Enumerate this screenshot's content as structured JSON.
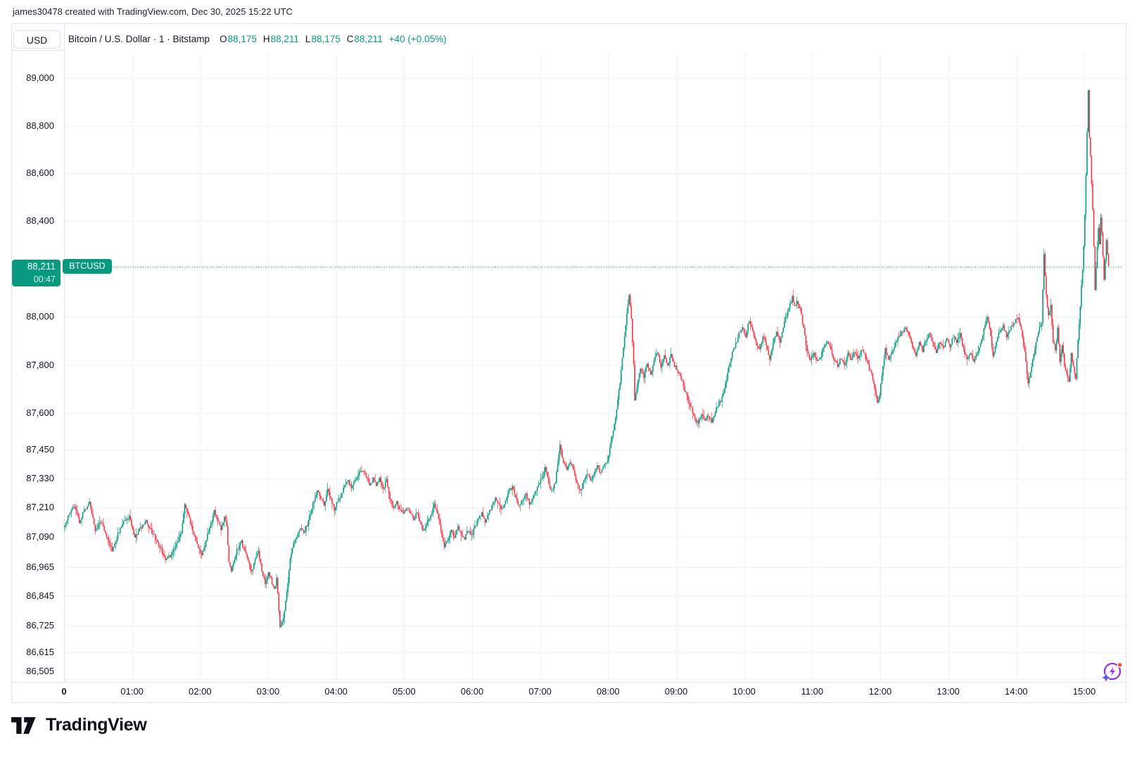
{
  "attribution": "james30478 created with TradingView.com, Dec 30, 2025 15:22 UTC",
  "header": {
    "symbol_button": "USD",
    "title": "Bitcoin / U.S. Dollar · 1 · Bitstamp",
    "o_label": "O",
    "o_value": "88,175",
    "h_label": "H",
    "h_value": "88,211",
    "l_label": "L",
    "l_value": "88,175",
    "c_label": "C",
    "c_value": "88,211",
    "change": "+40 (+0.05%)"
  },
  "price_tag": {
    "price": "88,211",
    "countdown": "00:47",
    "symbol": "BTCUSD"
  },
  "footer": {
    "logo_text": "TradingView"
  },
  "colors": {
    "up": "#089981",
    "down": "#f23645",
    "grid": "#f0f3fa",
    "frame": "#e0e3eb",
    "text": "#131722",
    "last_price_line": "#089981",
    "boost_purple": "#9333ea",
    "boost_star": "#6056f0",
    "boost_dot": "#f64e3c"
  },
  "chart_data": {
    "type": "candlestick",
    "title": "Bitcoin / U.S. Dollar",
    "symbol": "BTCUSD",
    "interval": "1",
    "exchange": "Bitstamp",
    "scale": "log",
    "last_price": 88211,
    "current_bar": {
      "open": 88175,
      "high": 88211,
      "low": 88175,
      "close": 88211,
      "change": 40,
      "change_pct": 0.05
    },
    "session": {
      "start_minute": 0,
      "end_minute": 922,
      "day_low": 86725,
      "day_high": 88950
    },
    "y_axis": {
      "ticks": [
        {
          "label": "89,000",
          "value": 89000
        },
        {
          "label": "88,800",
          "value": 88800
        },
        {
          "label": "88,600",
          "value": 88600
        },
        {
          "label": "88,400",
          "value": 88400
        },
        {
          "label": "88,000",
          "value": 88000
        },
        {
          "label": "87,800",
          "value": 87800
        },
        {
          "label": "87,600",
          "value": 87600
        },
        {
          "label": "87,450",
          "value": 87450
        },
        {
          "label": "87,330",
          "value": 87330
        },
        {
          "label": "87,210",
          "value": 87210
        },
        {
          "label": "87,090",
          "value": 87090
        },
        {
          "label": "86,965",
          "value": 86965
        },
        {
          "label": "86,845",
          "value": 86845
        },
        {
          "label": "86,725",
          "value": 86725
        },
        {
          "label": "86,615",
          "value": 86615
        },
        {
          "label": "86,505",
          "value": 86505
        }
      ]
    },
    "x_axis": {
      "ticks": [
        {
          "label": "0",
          "minute": 0,
          "bold": true
        },
        {
          "label": "01:00",
          "minute": 60
        },
        {
          "label": "02:00",
          "minute": 120
        },
        {
          "label": "03:00",
          "minute": 180
        },
        {
          "label": "04:00",
          "minute": 240
        },
        {
          "label": "05:00",
          "minute": 300
        },
        {
          "label": "06:00",
          "minute": 360
        },
        {
          "label": "07:00",
          "minute": 420
        },
        {
          "label": "08:00",
          "minute": 480
        },
        {
          "label": "09:00",
          "minute": 540
        },
        {
          "label": "10:00",
          "minute": 600
        },
        {
          "label": "11:00",
          "minute": 660
        },
        {
          "label": "12:00",
          "minute": 720
        },
        {
          "label": "13:00",
          "minute": 780
        },
        {
          "label": "14:00",
          "minute": 840
        },
        {
          "label": "15:00",
          "minute": 900
        }
      ]
    },
    "price_path": [
      [
        0,
        87130
      ],
      [
        5,
        87185
      ],
      [
        10,
        87215
      ],
      [
        14,
        87150
      ],
      [
        18,
        87195
      ],
      [
        23,
        87230
      ],
      [
        28,
        87120
      ],
      [
        33,
        87155
      ],
      [
        38,
        87090
      ],
      [
        43,
        87035
      ],
      [
        48,
        87100
      ],
      [
        53,
        87150
      ],
      [
        58,
        87170
      ],
      [
        63,
        87090
      ],
      [
        68,
        87125
      ],
      [
        73,
        87150
      ],
      [
        78,
        87110
      ],
      [
        84,
        87060
      ],
      [
        90,
        87000
      ],
      [
        95,
        87015
      ],
      [
        100,
        87060
      ],
      [
        104,
        87110
      ],
      [
        107,
        87222
      ],
      [
        110,
        87180
      ],
      [
        114,
        87120
      ],
      [
        118,
        87060
      ],
      [
        122,
        87015
      ],
      [
        126,
        87080
      ],
      [
        130,
        87140
      ],
      [
        133,
        87200
      ],
      [
        136,
        87160
      ],
      [
        139,
        87120
      ],
      [
        142,
        87165
      ],
      [
        144,
        87135
      ],
      [
        146,
        86990
      ],
      [
        148,
        86950
      ],
      [
        151,
        87005
      ],
      [
        154,
        87045
      ],
      [
        157,
        87070
      ],
      [
        160,
        87030
      ],
      [
        163,
        86985
      ],
      [
        166,
        86945
      ],
      [
        169,
        86995
      ],
      [
        172,
        87030
      ],
      [
        175,
        86950
      ],
      [
        178,
        86895
      ],
      [
        181,
        86940
      ],
      [
        184,
        86900
      ],
      [
        186,
        86870
      ],
      [
        188,
        86915
      ],
      [
        190,
        86790
      ],
      [
        191,
        86725
      ],
      [
        194,
        86750
      ],
      [
        197,
        86860
      ],
      [
        200,
        87000
      ],
      [
        203,
        87060
      ],
      [
        206,
        87090
      ],
      [
        209,
        87125
      ],
      [
        212,
        87105
      ],
      [
        215,
        87140
      ],
      [
        218,
        87190
      ],
      [
        221,
        87240
      ],
      [
        224,
        87280
      ],
      [
        227,
        87250
      ],
      [
        230,
        87220
      ],
      [
        233,
        87295
      ],
      [
        236,
        87240
      ],
      [
        239,
        87205
      ],
      [
        242,
        87235
      ],
      [
        245,
        87260
      ],
      [
        248,
        87300
      ],
      [
        251,
        87325
      ],
      [
        254,
        87290
      ],
      [
        257,
        87320
      ],
      [
        260,
        87350
      ],
      [
        264,
        87370
      ],
      [
        267,
        87340
      ],
      [
        270,
        87300
      ],
      [
        273,
        87330
      ],
      [
        276,
        87300
      ],
      [
        279,
        87330
      ],
      [
        282,
        87285
      ],
      [
        285,
        87320
      ],
      [
        288,
        87250
      ],
      [
        291,
        87210
      ],
      [
        294,
        87230
      ],
      [
        297,
        87200
      ],
      [
        300,
        87185
      ],
      [
        303,
        87210
      ],
      [
        306,
        87190
      ],
      [
        309,
        87160
      ],
      [
        312,
        87190
      ],
      [
        315,
        87140
      ],
      [
        318,
        87110
      ],
      [
        321,
        87150
      ],
      [
        324,
        87180
      ],
      [
        327,
        87220
      ],
      [
        330,
        87190
      ],
      [
        333,
        87110
      ],
      [
        336,
        87045
      ],
      [
        339,
        87080
      ],
      [
        342,
        87120
      ],
      [
        345,
        87090
      ],
      [
        348,
        87130
      ],
      [
        351,
        87100
      ],
      [
        354,
        87080
      ],
      [
        357,
        87120
      ],
      [
        360,
        87095
      ],
      [
        363,
        87130
      ],
      [
        366,
        87160
      ],
      [
        369,
        87190
      ],
      [
        372,
        87150
      ],
      [
        375,
        87180
      ],
      [
        378,
        87220
      ],
      [
        381,
        87250
      ],
      [
        384,
        87230
      ],
      [
        387,
        87200
      ],
      [
        390,
        87240
      ],
      [
        393,
        87280
      ],
      [
        396,
        87295
      ],
      [
        399,
        87250
      ],
      [
        402,
        87215
      ],
      [
        405,
        87240
      ],
      [
        408,
        87270
      ],
      [
        411,
        87220
      ],
      [
        414,
        87250
      ],
      [
        417,
        87280
      ],
      [
        420,
        87310
      ],
      [
        425,
        87370
      ],
      [
        428,
        87310
      ],
      [
        431,
        87280
      ],
      [
        434,
        87320
      ],
      [
        436,
        87390
      ],
      [
        438,
        87465
      ],
      [
        441,
        87400
      ],
      [
        444,
        87360
      ],
      [
        447,
        87400
      ],
      [
        450,
        87370
      ],
      [
        453,
        87310
      ],
      [
        456,
        87280
      ],
      [
        459,
        87320
      ],
      [
        462,
        87350
      ],
      [
        465,
        87320
      ],
      [
        468,
        87350
      ],
      [
        471,
        87380
      ],
      [
        474,
        87350
      ],
      [
        477,
        87390
      ],
      [
        480,
        87410
      ],
      [
        482,
        87450
      ],
      [
        485,
        87530
      ],
      [
        488,
        87615
      ],
      [
        491,
        87730
      ],
      [
        494,
        87880
      ],
      [
        497,
        88010
      ],
      [
        499,
        88085
      ],
      [
        501,
        87990
      ],
      [
        503,
        87800
      ],
      [
        504,
        87650
      ],
      [
        506,
        87715
      ],
      [
        509,
        87790
      ],
      [
        512,
        87755
      ],
      [
        515,
        87810
      ],
      [
        518,
        87760
      ],
      [
        521,
        87820
      ],
      [
        524,
        87855
      ],
      [
        527,
        87790
      ],
      [
        530,
        87840
      ],
      [
        533,
        87800
      ],
      [
        536,
        87845
      ],
      [
        539,
        87800
      ],
      [
        542,
        87770
      ],
      [
        545,
        87745
      ],
      [
        548,
        87700
      ],
      [
        551,
        87660
      ],
      [
        554,
        87620
      ],
      [
        557,
        87580
      ],
      [
        560,
        87555
      ],
      [
        563,
        87600
      ],
      [
        566,
        87570
      ],
      [
        569,
        87595
      ],
      [
        572,
        87565
      ],
      [
        575,
        87610
      ],
      [
        578,
        87640
      ],
      [
        581,
        87665
      ],
      [
        584,
        87720
      ],
      [
        587,
        87790
      ],
      [
        590,
        87850
      ],
      [
        593,
        87890
      ],
      [
        596,
        87930
      ],
      [
        599,
        87960
      ],
      [
        602,
        87920
      ],
      [
        605,
        87990
      ],
      [
        608,
        87940
      ],
      [
        611,
        87900
      ],
      [
        614,
        87860
      ],
      [
        617,
        87920
      ],
      [
        620,
        87880
      ],
      [
        623,
        87830
      ],
      [
        626,
        87890
      ],
      [
        629,
        87940
      ],
      [
        632,
        87900
      ],
      [
        635,
        87960
      ],
      [
        638,
        88010
      ],
      [
        641,
        88050
      ],
      [
        643,
        88085
      ],
      [
        645,
        88040
      ],
      [
        647,
        88060
      ],
      [
        650,
        88030
      ],
      [
        653,
        87950
      ],
      [
        656,
        87855
      ],
      [
        659,
        87820
      ],
      [
        662,
        87855
      ],
      [
        665,
        87810
      ],
      [
        668,
        87840
      ],
      [
        671,
        87880
      ],
      [
        674,
        87900
      ],
      [
        677,
        87860
      ],
      [
        680,
        87820
      ],
      [
        683,
        87800
      ],
      [
        686,
        87830
      ],
      [
        689,
        87800
      ],
      [
        692,
        87855
      ],
      [
        695,
        87820
      ],
      [
        698,
        87860
      ],
      [
        701,
        87830
      ],
      [
        704,
        87870
      ],
      [
        707,
        87840
      ],
      [
        710,
        87800
      ],
      [
        713,
        87760
      ],
      [
        716,
        87700
      ],
      [
        718,
        87645
      ],
      [
        720,
        87680
      ],
      [
        722,
        87750
      ],
      [
        725,
        87865
      ],
      [
        728,
        87820
      ],
      [
        731,
        87860
      ],
      [
        734,
        87890
      ],
      [
        737,
        87920
      ],
      [
        740,
        87945
      ],
      [
        743,
        87955
      ],
      [
        746,
        87920
      ],
      [
        749,
        87880
      ],
      [
        752,
        87840
      ],
      [
        755,
        87900
      ],
      [
        758,
        87860
      ],
      [
        761,
        87905
      ],
      [
        764,
        87935
      ],
      [
        767,
        87890
      ],
      [
        770,
        87855
      ],
      [
        773,
        87900
      ],
      [
        776,
        87870
      ],
      [
        779,
        87910
      ],
      [
        782,
        87880
      ],
      [
        785,
        87920
      ],
      [
        788,
        87900
      ],
      [
        791,
        87925
      ],
      [
        794,
        87870
      ],
      [
        797,
        87820
      ],
      [
        800,
        87845
      ],
      [
        803,
        87810
      ],
      [
        806,
        87850
      ],
      [
        809,
        87890
      ],
      [
        812,
        87950
      ],
      [
        815,
        88000
      ],
      [
        817,
        87950
      ],
      [
        820,
        87840
      ],
      [
        823,
        87900
      ],
      [
        826,
        87940
      ],
      [
        829,
        87960
      ],
      [
        832,
        87920
      ],
      [
        835,
        87950
      ],
      [
        838,
        87975
      ],
      [
        842,
        88000
      ],
      [
        845,
        87940
      ],
      [
        848,
        87850
      ],
      [
        851,
        87720
      ],
      [
        854,
        87800
      ],
      [
        857,
        87870
      ],
      [
        860,
        87940
      ],
      [
        863,
        87970
      ],
      [
        865,
        88260
      ],
      [
        867,
        88090
      ],
      [
        869,
        88000
      ],
      [
        871,
        88050
      ],
      [
        873,
        87900
      ],
      [
        875,
        87860
      ],
      [
        877,
        87950
      ],
      [
        879,
        87820
      ],
      [
        881,
        87880
      ],
      [
        883,
        87800
      ],
      [
        885,
        87770
      ],
      [
        887,
        87730
      ],
      [
        889,
        87850
      ],
      [
        891,
        87790
      ],
      [
        893,
        87750
      ],
      [
        895,
        87900
      ],
      [
        897,
        88050
      ],
      [
        899,
        88200
      ],
      [
        900,
        88300
      ],
      [
        901,
        88420
      ],
      [
        902,
        88600
      ],
      [
        903,
        88770
      ],
      [
        904,
        88950
      ],
      [
        905,
        88750
      ],
      [
        906,
        88680
      ],
      [
        907,
        88560
      ],
      [
        908,
        88440
      ],
      [
        909,
        88300
      ],
      [
        910,
        88120
      ],
      [
        911,
        88200
      ],
      [
        912,
        88300
      ],
      [
        913,
        88380
      ],
      [
        914,
        88300
      ],
      [
        915,
        88420
      ],
      [
        916,
        88350
      ],
      [
        917,
        88250
      ],
      [
        918,
        88150
      ],
      [
        919,
        88230
      ],
      [
        920,
        88320
      ],
      [
        921,
        88260
      ],
      [
        922,
        88211
      ]
    ],
    "render": {
      "noise_amp": 8,
      "wick_amp": 26,
      "seed": 7
    }
  }
}
